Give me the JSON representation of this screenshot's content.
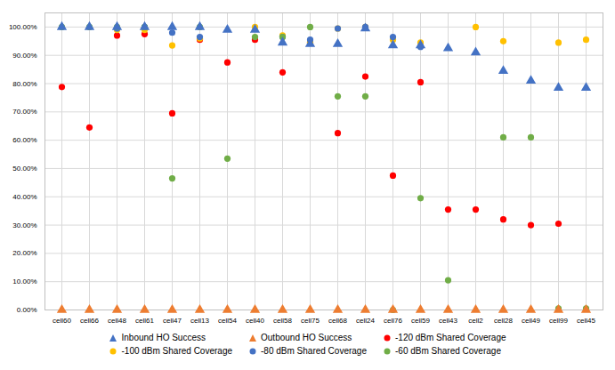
{
  "chart_data": {
    "type": "scatter",
    "categories": [
      "cell60",
      "cell66",
      "cell48",
      "cell61",
      "cell47",
      "cell13",
      "cell54",
      "cell40",
      "cell58",
      "cell75",
      "cell68",
      "cell24",
      "cell76",
      "cell59",
      "cell43",
      "cell2",
      "cell28",
      "cell49",
      "cell99",
      "cell45"
    ],
    "series": [
      {
        "name": "Inbound HO Success",
        "color": "#4472c4",
        "marker": "triangle",
        "values": [
          1.0,
          1.0,
          1.0,
          1.0,
          1.0,
          1.0,
          0.99,
          0.99,
          0.945,
          0.94,
          0.94,
          0.995,
          0.935,
          0.935,
          0.925,
          0.91,
          0.845,
          0.81,
          0.785,
          0.785
        ]
      },
      {
        "name": "Outbound HO Success",
        "color": "#ed7d31",
        "marker": "triangle",
        "values": [
          0.0,
          0.0,
          0.0,
          0.0,
          0.0,
          0.0,
          0.0,
          0.0,
          0.0,
          0.0,
          0.0,
          0.0,
          0.0,
          0.0,
          0.0,
          0.0,
          0.0,
          0.0,
          0.0,
          0.0
        ]
      },
      {
        "name": "-120 dBm Shared Coverage",
        "color": "#ff0000",
        "marker": "circle",
        "values": [
          0.788,
          0.645,
          0.97,
          0.975,
          0.695,
          0.955,
          0.875,
          0.955,
          0.84,
          0.945,
          0.625,
          0.825,
          0.475,
          0.805,
          0.355,
          0.355,
          0.32,
          0.3,
          0.305,
          null
        ]
      },
      {
        "name": "-100 dBm Shared Coverage",
        "color": "#ffc000",
        "marker": "circle",
        "values": [
          null,
          null,
          0.99,
          0.99,
          0.935,
          0.96,
          null,
          1.0,
          0.97,
          0.945,
          0.995,
          1.0,
          0.955,
          0.945,
          null,
          1.0,
          0.95,
          null,
          0.945,
          0.955
        ]
      },
      {
        "name": "-80 dBm Shared Coverage",
        "color": "#4472c4",
        "marker": "circle",
        "values": [
          null,
          null,
          0.995,
          1.0,
          0.98,
          0.965,
          null,
          null,
          0.965,
          0.955,
          0.995,
          1.0,
          0.965,
          0.93,
          null,
          null,
          null,
          null,
          null,
          null
        ]
      },
      {
        "name": "-60 dBm Shared Coverage",
        "color": "#70ad47",
        "marker": "circle",
        "values": [
          1.0,
          1.0,
          1.0,
          1.0,
          0.465,
          1.0,
          0.535,
          0.965,
          0.965,
          1.0,
          0.755,
          0.755,
          0.0,
          0.395,
          0.105,
          null,
          0.61,
          0.61,
          0.005,
          0.005
        ]
      }
    ],
    "ylim": [
      0.0,
      1.05
    ],
    "yticks": [
      {
        "value": 0.0,
        "label": "0.00%"
      },
      {
        "value": 0.1,
        "label": "10.00%"
      },
      {
        "value": 0.2,
        "label": "20.00%"
      },
      {
        "value": 0.3,
        "label": "30.00%"
      },
      {
        "value": 0.4,
        "label": "40.00%"
      },
      {
        "value": 0.5,
        "label": "50.00%"
      },
      {
        "value": 0.6,
        "label": "60.00%"
      },
      {
        "value": 0.7,
        "label": "70.00%"
      },
      {
        "value": 0.8,
        "label": "80.00%"
      },
      {
        "value": 0.9,
        "label": "90.00%"
      },
      {
        "value": 1.0,
        "label": "100.00%"
      }
    ],
    "grid": true,
    "legend": "bottom"
  }
}
